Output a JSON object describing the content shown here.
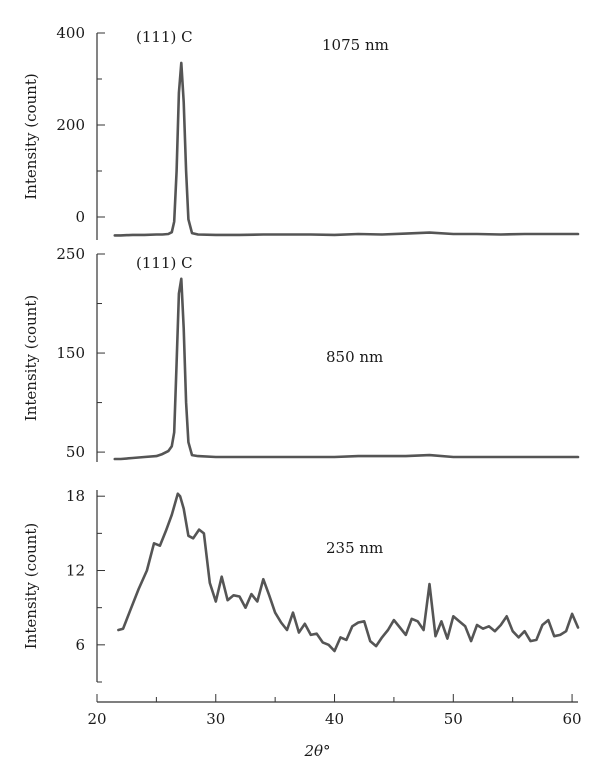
{
  "chart_data": [
    {
      "type": "line",
      "panel": "top",
      "ylabel": "Intensity (count)",
      "ylim": [
        -50,
        400
      ],
      "yticks": [
        0,
        200,
        400
      ],
      "xlim": [
        20,
        60.5
      ],
      "annotations": [
        "(111) C",
        "1075 nm"
      ],
      "series": [
        {
          "color": "#555555",
          "x": [
            21.5,
            22,
            23,
            24,
            25,
            25.5,
            26,
            26.3,
            26.5,
            26.7,
            26.9,
            27.1,
            27.3,
            27.5,
            27.7,
            28,
            28.5,
            30,
            32,
            34,
            36,
            38,
            40,
            42,
            44,
            46,
            48,
            50,
            52,
            54,
            56,
            58,
            60,
            60.5
          ],
          "y": [
            -40,
            -40,
            -39,
            -39,
            -38,
            -38,
            -37,
            -33,
            -10,
            100,
            270,
            335,
            250,
            100,
            -5,
            -35,
            -38,
            -39,
            -39,
            -38,
            -38,
            -38,
            -39,
            -37,
            -38,
            -36,
            -34,
            -37,
            -37,
            -38,
            -37,
            -37,
            -37,
            -37
          ]
        }
      ]
    },
    {
      "type": "line",
      "panel": "middle",
      "ylabel": "Intensity (count)",
      "ylim": [
        40,
        250
      ],
      "yticks": [
        50,
        150,
        250
      ],
      "xlim": [
        20,
        60.5
      ],
      "annotations": [
        "(111) C",
        "850 nm"
      ],
      "series": [
        {
          "color": "#555555",
          "x": [
            21.5,
            22,
            23,
            24,
            25,
            25.5,
            26,
            26.3,
            26.5,
            26.7,
            26.9,
            27.1,
            27.3,
            27.5,
            27.7,
            28,
            28.5,
            30,
            32,
            34,
            36,
            38,
            40,
            42,
            44,
            46,
            48,
            50,
            52,
            54,
            56,
            58,
            60,
            60.5
          ],
          "y": [
            43,
            43,
            44,
            45,
            46,
            48,
            51,
            56,
            70,
            140,
            210,
            225,
            175,
            100,
            60,
            47,
            46,
            45,
            45,
            45,
            45,
            45,
            45,
            46,
            46,
            46,
            47,
            45,
            45,
            45,
            45,
            45,
            45,
            45
          ]
        }
      ]
    },
    {
      "type": "line",
      "panel": "bottom",
      "ylabel": "Intensity (count)",
      "ylim": [
        3,
        18.5
      ],
      "yticks": [
        6,
        12,
        18
      ],
      "xlim": [
        20,
        60.5
      ],
      "xticks": [
        20,
        30,
        40,
        50,
        60
      ],
      "xlabel": "2θ°",
      "annotations": [
        "235 nm"
      ],
      "series": [
        {
          "color": "#555555",
          "x": [
            21.8,
            22.2,
            22.8,
            23.5,
            24.2,
            24.8,
            25.3,
            25.8,
            26.3,
            26.8,
            27.0,
            27.3,
            27.7,
            28.1,
            28.6,
            29.0,
            29.5,
            30.0,
            30.5,
            31.0,
            31.5,
            32.0,
            32.5,
            33.0,
            33.5,
            34.0,
            34.5,
            35.0,
            35.5,
            36.0,
            36.5,
            37.0,
            37.5,
            38.0,
            38.5,
            39.0,
            39.5,
            40.0,
            40.5,
            41.0,
            41.5,
            42.0,
            42.5,
            43.0,
            43.5,
            44.0,
            44.5,
            45.0,
            45.5,
            46.0,
            46.5,
            47.0,
            47.5,
            48.0,
            48.5,
            49.0,
            49.5,
            50.0,
            50.5,
            51.0,
            51.5,
            52.0,
            52.5,
            53.0,
            53.5,
            54.0,
            54.5,
            55.0,
            55.5,
            56.0,
            56.5,
            57.0,
            57.5,
            58.0,
            58.5,
            59.0,
            59.5,
            60.0,
            60.5
          ],
          "y": [
            7.2,
            7.3,
            8.8,
            10.5,
            12.0,
            14.2,
            14.0,
            15.2,
            16.5,
            18.2,
            18.0,
            17.0,
            14.8,
            14.6,
            15.3,
            15.0,
            11.0,
            9.5,
            11.5,
            9.6,
            10.0,
            9.9,
            9.0,
            10.1,
            9.5,
            11.3,
            10.0,
            8.6,
            7.8,
            7.2,
            8.6,
            7.0,
            7.7,
            6.8,
            6.9,
            6.2,
            6.0,
            5.5,
            6.6,
            6.4,
            7.5,
            7.8,
            7.9,
            6.3,
            5.9,
            6.6,
            7.2,
            8.0,
            7.4,
            6.8,
            8.1,
            7.9,
            7.2,
            10.9,
            6.7,
            7.9,
            6.5,
            8.3,
            7.9,
            7.5,
            6.3,
            7.6,
            7.3,
            7.5,
            7.1,
            7.6,
            8.3,
            7.1,
            6.6,
            7.1,
            6.3,
            6.4,
            7.6,
            8.0,
            6.7,
            6.8,
            7.1,
            8.5,
            7.4
          ]
        }
      ]
    }
  ]
}
